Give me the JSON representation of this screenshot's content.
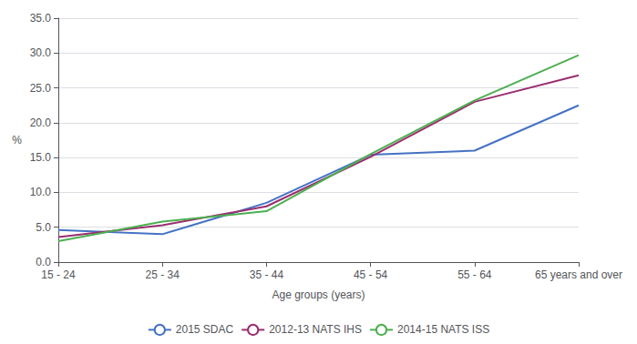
{
  "chart_data": {
    "type": "line",
    "categories": [
      "15 - 24",
      "25 - 34",
      "35 - 44",
      "45 - 54",
      "55 - 64",
      "65 years and over"
    ],
    "series": [
      {
        "name": "2015 SDAC",
        "color": "#4472C4",
        "values": [
          4.6,
          4.0,
          8.5,
          15.4,
          16.0,
          22.5
        ]
      },
      {
        "name": "2012-13 NATS IHS",
        "color": "#9B2D6F",
        "values": [
          3.6,
          5.3,
          8.0,
          15.1,
          23.0,
          26.8
        ]
      },
      {
        "name": "2014-15 NATS ISS",
        "color": "#4CAF50",
        "values": [
          3.0,
          5.8,
          7.3,
          15.5,
          23.2,
          29.7
        ]
      }
    ],
    "xlabel": "Age groups (years)",
    "ylabel": "%",
    "ylim": [
      0.0,
      35.0
    ],
    "yticks": [
      {
        "value": 0,
        "label": "0.0"
      },
      {
        "value": 5,
        "label": "5.0"
      },
      {
        "value": 10,
        "label": "10.0"
      },
      {
        "value": 15,
        "label": "15.0"
      },
      {
        "value": 20,
        "label": "20.0"
      },
      {
        "value": 25,
        "label": "25.0"
      },
      {
        "value": 30,
        "label": "30.0"
      },
      {
        "value": 35,
        "label": "35.0"
      }
    ],
    "grid": true,
    "legend": "bottom"
  }
}
